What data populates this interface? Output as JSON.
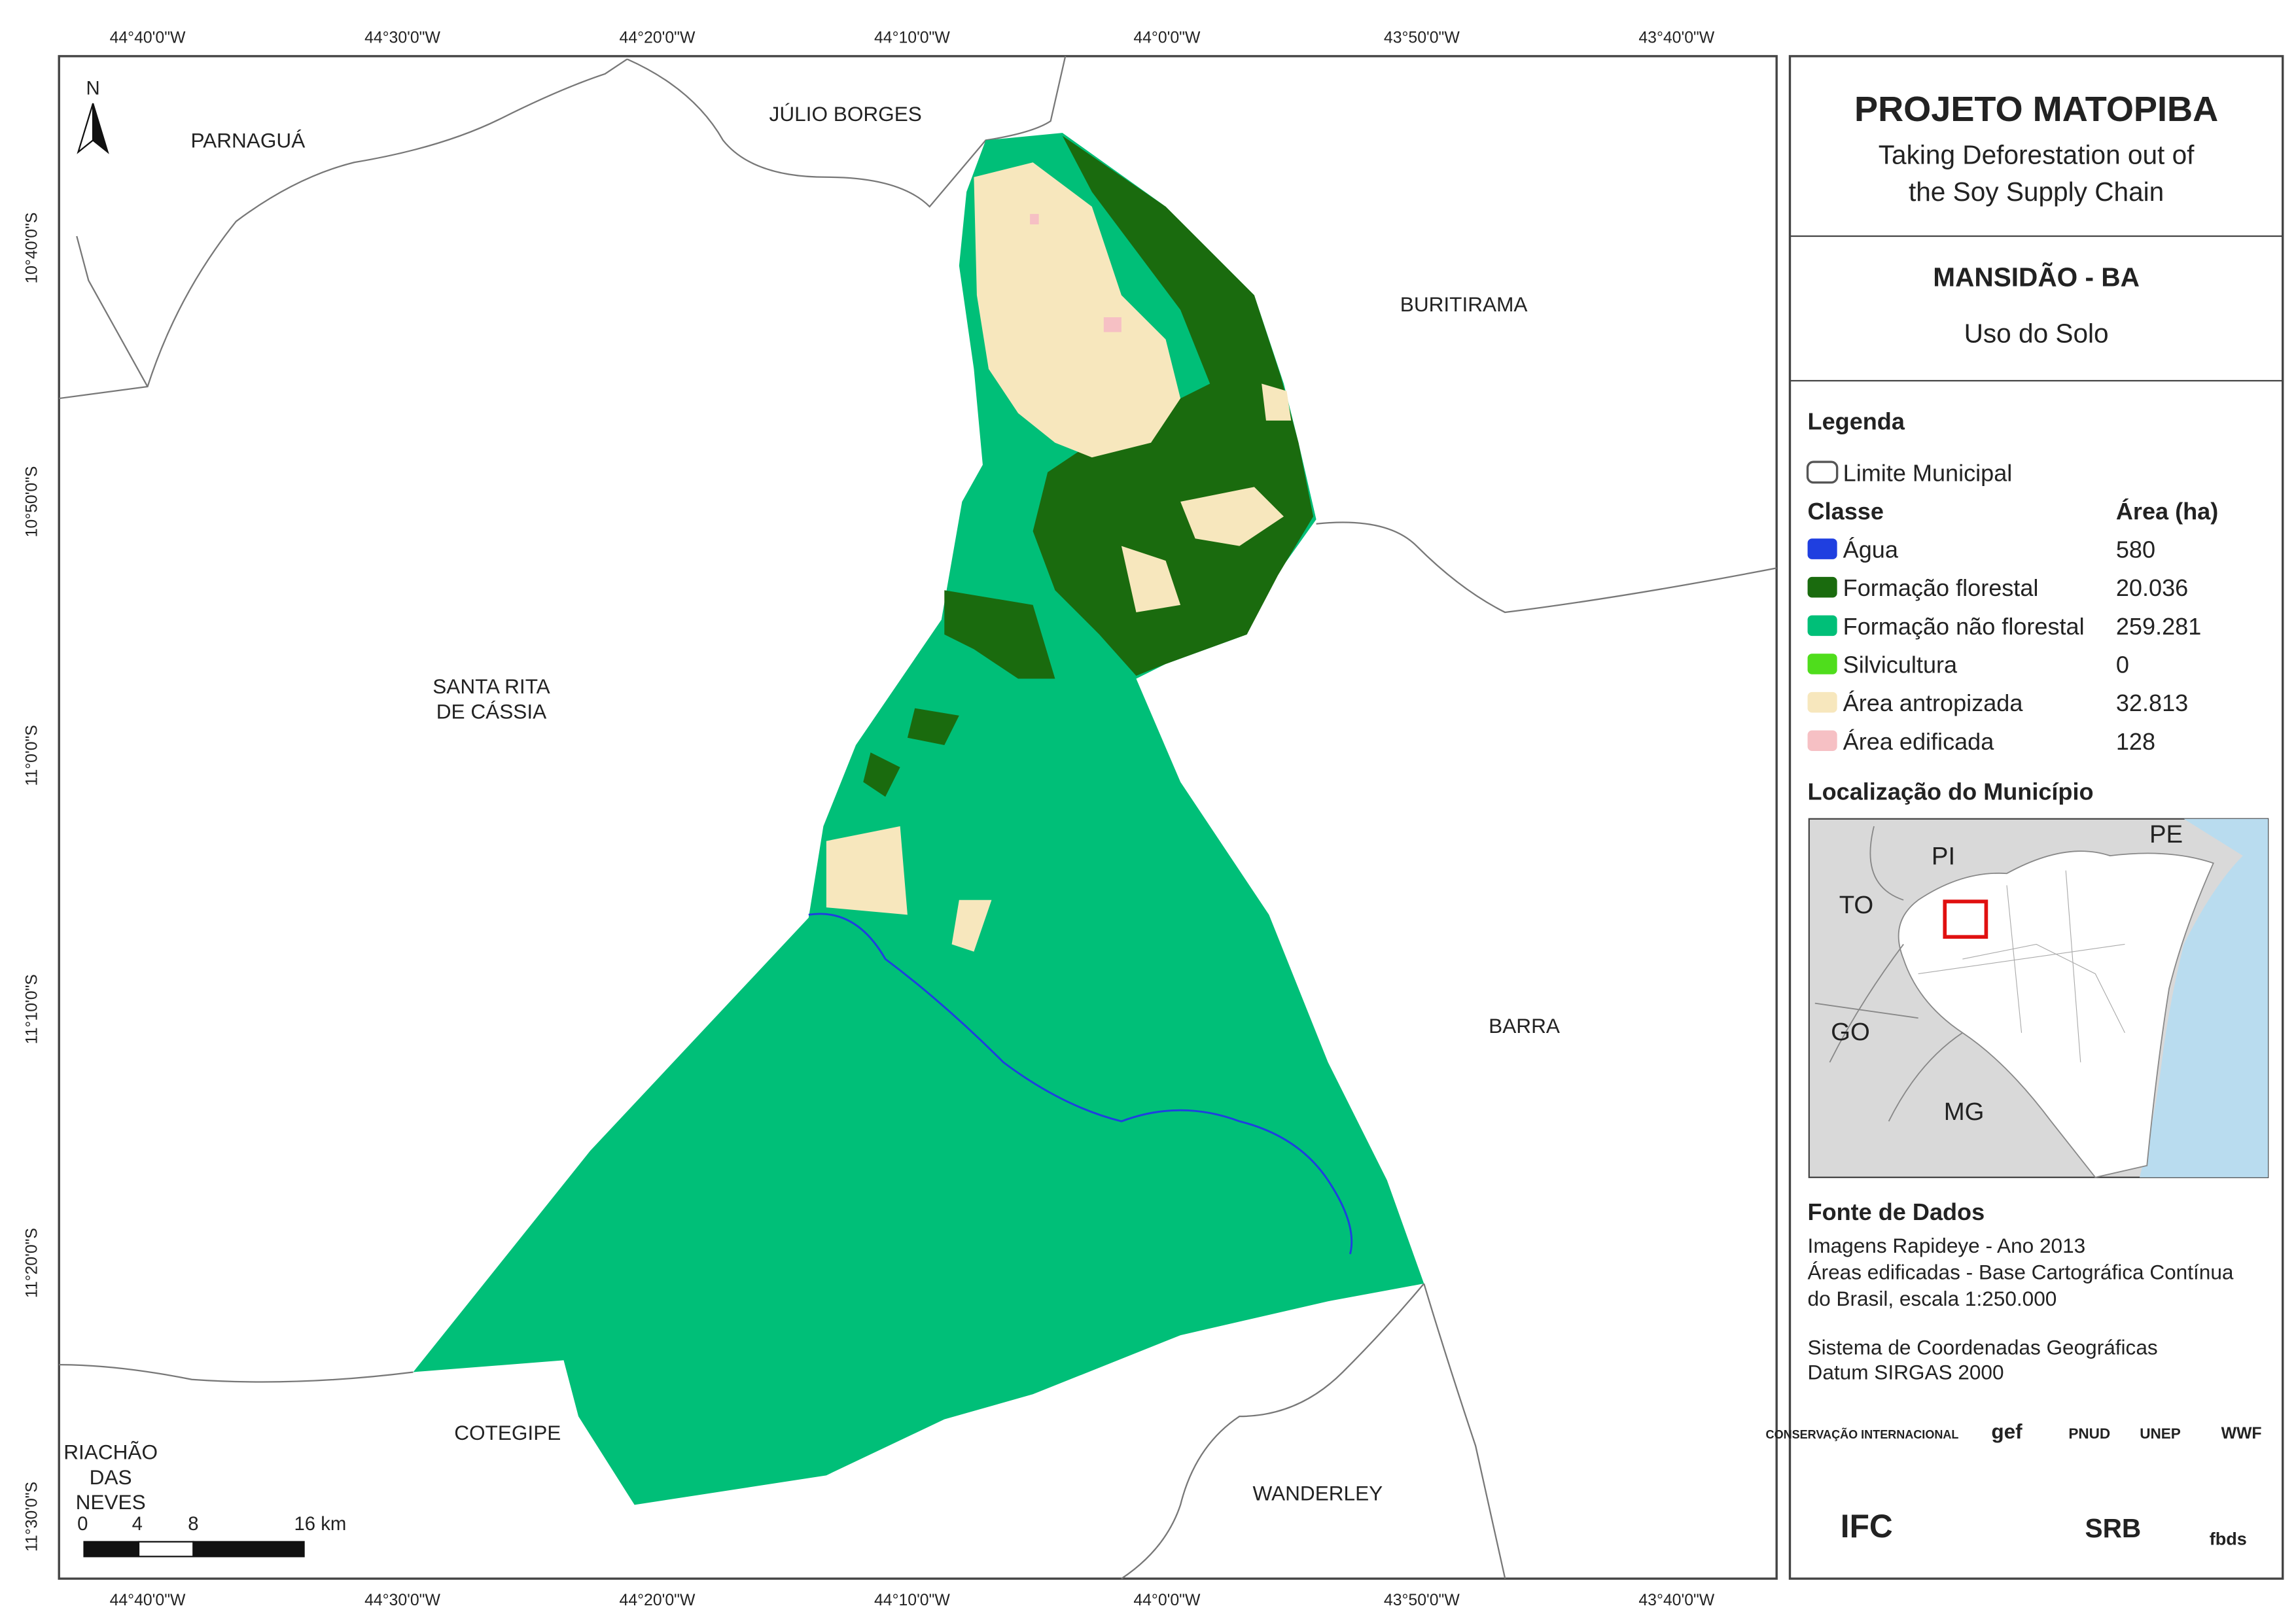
{
  "map": {
    "longitudes": [
      "44°40'0\"W",
      "44°30'0\"W",
      "44°20'0\"W",
      "44°10'0\"W",
      "44°0'0\"W",
      "43°50'0\"W",
      "43°40'0\"W"
    ],
    "latitudes": [
      "10°40'0\"S",
      "10°50'0\"S",
      "11°0'0\"S",
      "11°10'0\"S",
      "11°20'0\"S",
      "11°30'0\"S"
    ],
    "places": [
      {
        "lines": [
          "PARNAGUÁ"
        ]
      },
      {
        "lines": [
          "JÚLIO BORGES"
        ]
      },
      {
        "lines": [
          "BURITIRAMA"
        ]
      },
      {
        "lines": [
          "SANTA RITA",
          "DE CÁSSIA"
        ]
      },
      {
        "lines": [
          "BARRA"
        ]
      },
      {
        "lines": [
          "COTEGIPE"
        ]
      },
      {
        "lines": [
          "WANDERLEY"
        ]
      },
      {
        "lines": [
          "RIACHÃO",
          "DAS",
          "NEVES"
        ]
      }
    ],
    "north": "N",
    "scale_bar": [
      "0",
      "4",
      "8",
      "16 km"
    ]
  },
  "panel": {
    "title": "PROJETO MATOPIBA",
    "subtitle": [
      "Taking Deforestation out of",
      "the Soy Supply Chain"
    ],
    "municipality": "MANSIDÃO - BA",
    "theme": "Uso do Solo",
    "legend": {
      "title": "Legenda",
      "boundary": "Limite Municipal",
      "class_header": "Classe",
      "area_header": "Área (ha)",
      "classes": [
        {
          "name": "Água",
          "area": "580",
          "color": "#1f3fe0"
        },
        {
          "name": "Formação florestal",
          "area": "20.036",
          "color": "#1a6b0e"
        },
        {
          "name": "Formação não florestal",
          "area": "259.281",
          "color": "#00bf78"
        },
        {
          "name": "Silvicultura",
          "area": "0",
          "color": "#4fdd1c"
        },
        {
          "name": "Área antropizada",
          "area": "32.813",
          "color": "#f7e7bd"
        },
        {
          "name": "Área edificada",
          "area": "128",
          "color": "#f6c0c4"
        }
      ]
    },
    "location": {
      "title": "Localização do Município",
      "states": [
        "PI",
        "PE",
        "TO",
        "GO",
        "MG"
      ]
    },
    "sources": {
      "title": "Fonte de Dados",
      "lines": [
        "Imagens Rapideye - Ano 2013",
        "Áreas edificadas - Base Cartográfica Contínua",
        "do Brasil, escala 1:250.000",
        "Sistema de Coordenadas Geográficas",
        "Datum SIRGAS 2000"
      ]
    },
    "logos": [
      "CONSERVAÇÃO INTERNACIONAL",
      "gef",
      "PNUD",
      "UNEP",
      "WWF",
      "IFC",
      "SRB",
      "fbds"
    ]
  }
}
